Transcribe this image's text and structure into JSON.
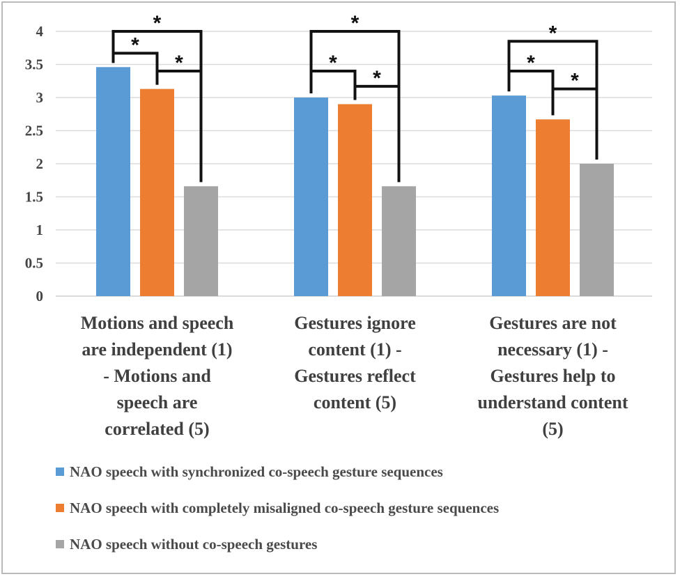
{
  "chart_data": {
    "type": "bar",
    "categories": [
      [
        "Motions and speech",
        "are independent (1)",
        "- Motions and",
        "speech are",
        "correlated (5)"
      ],
      [
        "Gestures ignore",
        "content (1) -",
        "Gestures reflect",
        "content (5)"
      ],
      [
        "Gestures are not",
        "necessary (1) -",
        "Gestures help to",
        "understand content",
        "(5)"
      ]
    ],
    "series": [
      {
        "name": "NAO speech with synchronized co-speech gesture sequences",
        "color": "#5B9BD5",
        "values": [
          3.46,
          3.0,
          3.03
        ]
      },
      {
        "name": "NAO speech with completely misaligned co-speech gesture sequences",
        "color": "#ED7D31",
        "values": [
          3.13,
          2.9,
          2.67
        ]
      },
      {
        "name": "NAO speech without co-speech gestures",
        "color": "#A5A5A5",
        "values": [
          1.66,
          1.66,
          2.0
        ]
      }
    ],
    "ylim": [
      0,
      4
    ],
    "yticks": [
      "0",
      "0.5",
      "1",
      "1.5",
      "2",
      "2.5",
      "3",
      "3.5",
      "4"
    ],
    "ytick_values": [
      0,
      0.5,
      1,
      1.5,
      2,
      2.5,
      3,
      3.5,
      4
    ],
    "grid": true,
    "legend_position": "bottom",
    "significance": [
      {
        "group": 0,
        "from": 0,
        "to": 2,
        "level": 4.0,
        "label": "*"
      },
      {
        "group": 0,
        "from": 0,
        "to": 1,
        "level": 3.67,
        "label": "*"
      },
      {
        "group": 0,
        "from": 1,
        "to": 2,
        "level": 3.4,
        "label": "*"
      },
      {
        "group": 1,
        "from": 0,
        "to": 2,
        "level": 4.0,
        "label": "*"
      },
      {
        "group": 1,
        "from": 0,
        "to": 1,
        "level": 3.4,
        "label": "*"
      },
      {
        "group": 1,
        "from": 1,
        "to": 2,
        "level": 3.17,
        "label": "*"
      },
      {
        "group": 2,
        "from": 0,
        "to": 2,
        "level": 3.85,
        "label": "*"
      },
      {
        "group": 2,
        "from": 0,
        "to": 1,
        "level": 3.4,
        "label": "*"
      },
      {
        "group": 2,
        "from": 1,
        "to": 2,
        "level": 3.13,
        "label": "*"
      }
    ]
  }
}
